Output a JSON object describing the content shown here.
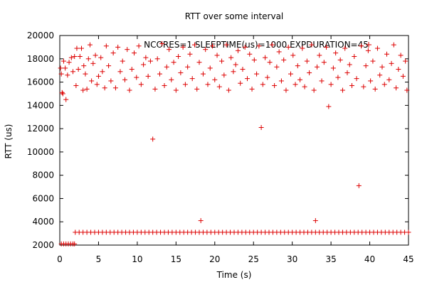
{
  "chart_data": {
    "type": "scatter",
    "title": "RTT over some interval",
    "xlabel": "Time (s)",
    "ylabel": "RTT (us)",
    "xlim": [
      0,
      45
    ],
    "ylim": [
      2000,
      20000
    ],
    "grid": false,
    "legend_placement": "top-right",
    "marker": "+",
    "color": "#dd0000",
    "xticks": [
      0,
      5,
      10,
      15,
      20,
      25,
      30,
      35,
      40,
      45
    ],
    "yticks": [
      2000,
      4000,
      6000,
      8000,
      10000,
      12000,
      14000,
      16000,
      18000,
      20000
    ],
    "series": [
      {
        "name": "NCORES=1 SLEEPTIME(us)=1000 EXPDURATION=45",
        "points": [
          [
            0.1,
            17200
          ],
          [
            0.2,
            16700
          ],
          [
            0.3,
            15100
          ],
          [
            0.4,
            15000
          ],
          [
            0.5,
            17800
          ],
          [
            0.7,
            17200
          ],
          [
            0.8,
            14500
          ],
          [
            1.0,
            16600
          ],
          [
            1.2,
            17700
          ],
          [
            1.5,
            18100
          ],
          [
            1.7,
            16900
          ],
          [
            1.9,
            18200
          ],
          [
            2.1,
            15700
          ],
          [
            2.2,
            18900
          ],
          [
            2.4,
            17100
          ],
          [
            2.6,
            18200
          ],
          [
            2.8,
            18900
          ],
          [
            3.0,
            15300
          ],
          [
            3.1,
            17400
          ],
          [
            3.3,
            16700
          ],
          [
            3.5,
            15400
          ],
          [
            3.7,
            18000
          ],
          [
            3.9,
            19200
          ],
          [
            4.1,
            16100
          ],
          [
            4.3,
            17600
          ],
          [
            4.6,
            18300
          ],
          [
            4.8,
            15800
          ],
          [
            5.0,
            16500
          ],
          [
            5.3,
            18100
          ],
          [
            5.5,
            16900
          ],
          [
            5.8,
            15500
          ],
          [
            6.0,
            19100
          ],
          [
            6.3,
            17400
          ],
          [
            6.6,
            16100
          ],
          [
            6.9,
            18500
          ],
          [
            7.2,
            15500
          ],
          [
            7.5,
            19000
          ],
          [
            7.8,
            16900
          ],
          [
            8.1,
            17800
          ],
          [
            8.4,
            16200
          ],
          [
            8.7,
            18800
          ],
          [
            9.0,
            15300
          ],
          [
            9.3,
            17100
          ],
          [
            9.6,
            18500
          ],
          [
            9.9,
            16400
          ],
          [
            10.2,
            19100
          ],
          [
            10.5,
            15800
          ],
          [
            10.8,
            17500
          ],
          [
            11.1,
            18100
          ],
          [
            11.4,
            16500
          ],
          [
            11.7,
            17800
          ],
          [
            12.0,
            11100
          ],
          [
            12.3,
            15400
          ],
          [
            12.6,
            18000
          ],
          [
            12.9,
            16700
          ],
          [
            13.2,
            19300
          ],
          [
            13.5,
            15700
          ],
          [
            13.8,
            17300
          ],
          [
            14.1,
            18800
          ],
          [
            14.4,
            16200
          ],
          [
            14.7,
            17700
          ],
          [
            15.0,
            15300
          ],
          [
            15.3,
            18200
          ],
          [
            15.6,
            16800
          ],
          [
            15.9,
            19000
          ],
          [
            16.2,
            15800
          ],
          [
            16.5,
            17300
          ],
          [
            16.8,
            18400
          ],
          [
            17.1,
            16300
          ],
          [
            17.4,
            19200
          ],
          [
            17.7,
            15400
          ],
          [
            18.0,
            17700
          ],
          [
            18.2,
            4100
          ],
          [
            18.5,
            16700
          ],
          [
            18.8,
            18800
          ],
          [
            19.1,
            15800
          ],
          [
            19.4,
            17200
          ],
          [
            19.7,
            19100
          ],
          [
            20.0,
            16200
          ],
          [
            20.3,
            18300
          ],
          [
            20.6,
            15600
          ],
          [
            20.9,
            17800
          ],
          [
            21.2,
            16600
          ],
          [
            21.5,
            19200
          ],
          [
            21.8,
            15300
          ],
          [
            22.1,
            18100
          ],
          [
            22.4,
            16900
          ],
          [
            22.7,
            17500
          ],
          [
            23.0,
            18700
          ],
          [
            23.3,
            15900
          ],
          [
            23.6,
            17100
          ],
          [
            23.9,
            19000
          ],
          [
            24.2,
            16300
          ],
          [
            24.5,
            18400
          ],
          [
            24.8,
            15400
          ],
          [
            25.1,
            17900
          ],
          [
            25.4,
            16700
          ],
          [
            25.7,
            19100
          ],
          [
            26.0,
            12100
          ],
          [
            26.2,
            15800
          ],
          [
            26.5,
            18100
          ],
          [
            26.8,
            16400
          ],
          [
            27.1,
            17700
          ],
          [
            27.4,
            19200
          ],
          [
            27.7,
            15700
          ],
          [
            28.0,
            17300
          ],
          [
            28.3,
            18600
          ],
          [
            28.6,
            16100
          ],
          [
            28.9,
            17900
          ],
          [
            29.2,
            15300
          ],
          [
            29.5,
            19000
          ],
          [
            29.8,
            16700
          ],
          [
            30.1,
            18300
          ],
          [
            30.4,
            15800
          ],
          [
            30.7,
            17400
          ],
          [
            31.0,
            16200
          ],
          [
            31.3,
            18900
          ],
          [
            31.6,
            15600
          ],
          [
            31.9,
            17800
          ],
          [
            32.2,
            16800
          ],
          [
            32.5,
            19200
          ],
          [
            32.8,
            15300
          ],
          [
            33.0,
            4100
          ],
          [
            33.2,
            17300
          ],
          [
            33.5,
            18300
          ],
          [
            33.8,
            16100
          ],
          [
            34.1,
            17700
          ],
          [
            34.4,
            19000
          ],
          [
            34.7,
            13900
          ],
          [
            35.0,
            15800
          ],
          [
            35.3,
            17200
          ],
          [
            35.6,
            18500
          ],
          [
            35.9,
            16400
          ],
          [
            36.2,
            17900
          ],
          [
            36.5,
            15300
          ],
          [
            36.8,
            18900
          ],
          [
            37.1,
            16800
          ],
          [
            37.4,
            17500
          ],
          [
            37.7,
            15700
          ],
          [
            38.0,
            18200
          ],
          [
            38.3,
            16300
          ],
          [
            38.6,
            7100
          ],
          [
            38.9,
            19100
          ],
          [
            39.2,
            15600
          ],
          [
            39.5,
            17400
          ],
          [
            39.8,
            18700
          ],
          [
            40.1,
            16100
          ],
          [
            40.4,
            17800
          ],
          [
            40.7,
            15400
          ],
          [
            41.0,
            18900
          ],
          [
            41.3,
            16600
          ],
          [
            41.6,
            17300
          ],
          [
            41.9,
            15800
          ],
          [
            42.2,
            18400
          ],
          [
            42.5,
            16200
          ],
          [
            42.8,
            17600
          ],
          [
            43.1,
            19200
          ],
          [
            43.4,
            15500
          ],
          [
            43.7,
            17100
          ],
          [
            44.0,
            18300
          ],
          [
            44.3,
            16500
          ],
          [
            44.6,
            17800
          ],
          [
            44.8,
            15300
          ],
          [
            0.2,
            2100
          ],
          [
            0.5,
            2100
          ],
          [
            0.8,
            2100
          ],
          [
            1.1,
            2100
          ],
          [
            1.4,
            2100
          ],
          [
            1.7,
            2100
          ],
          [
            1.9,
            2100
          ],
          [
            2.0,
            3100
          ],
          [
            2.5,
            3100
          ],
          [
            3.0,
            3100
          ],
          [
            3.5,
            3100
          ],
          [
            4.0,
            3100
          ],
          [
            4.5,
            3100
          ],
          [
            5.0,
            3100
          ],
          [
            5.5,
            3100
          ],
          [
            6.0,
            3100
          ],
          [
            6.5,
            3100
          ],
          [
            7.0,
            3100
          ],
          [
            7.5,
            3100
          ],
          [
            8.0,
            3100
          ],
          [
            8.5,
            3100
          ],
          [
            9.0,
            3100
          ],
          [
            9.5,
            3100
          ],
          [
            10.0,
            3100
          ],
          [
            10.5,
            3100
          ],
          [
            11.0,
            3100
          ],
          [
            11.5,
            3100
          ],
          [
            12.0,
            3100
          ],
          [
            12.5,
            3100
          ],
          [
            13.0,
            3100
          ],
          [
            13.5,
            3100
          ],
          [
            14.0,
            3100
          ],
          [
            14.5,
            3100
          ],
          [
            15.0,
            3100
          ],
          [
            15.5,
            3100
          ],
          [
            16.0,
            3100
          ],
          [
            16.5,
            3100
          ],
          [
            17.0,
            3100
          ],
          [
            17.5,
            3100
          ],
          [
            18.0,
            3100
          ],
          [
            18.5,
            3100
          ],
          [
            19.0,
            3100
          ],
          [
            19.5,
            3100
          ],
          [
            20.0,
            3100
          ],
          [
            20.5,
            3100
          ],
          [
            21.0,
            3100
          ],
          [
            21.5,
            3100
          ],
          [
            22.0,
            3100
          ],
          [
            22.5,
            3100
          ],
          [
            23.0,
            3100
          ],
          [
            23.5,
            3100
          ],
          [
            24.0,
            3100
          ],
          [
            24.5,
            3100
          ],
          [
            25.0,
            3100
          ],
          [
            25.5,
            3100
          ],
          [
            26.0,
            3100
          ],
          [
            26.5,
            3100
          ],
          [
            27.0,
            3100
          ],
          [
            27.5,
            3100
          ],
          [
            28.0,
            3100
          ],
          [
            28.5,
            3100
          ],
          [
            29.0,
            3100
          ],
          [
            29.5,
            3100
          ],
          [
            30.0,
            3100
          ],
          [
            30.5,
            3100
          ],
          [
            31.0,
            3100
          ],
          [
            31.5,
            3100
          ],
          [
            32.0,
            3100
          ],
          [
            32.5,
            3100
          ],
          [
            33.0,
            3100
          ],
          [
            33.5,
            3100
          ],
          [
            34.0,
            3100
          ],
          [
            34.5,
            3100
          ],
          [
            35.0,
            3100
          ],
          [
            35.5,
            3100
          ],
          [
            36.0,
            3100
          ],
          [
            36.5,
            3100
          ],
          [
            37.0,
            3100
          ],
          [
            37.5,
            3100
          ],
          [
            38.0,
            3100
          ],
          [
            38.5,
            3100
          ],
          [
            39.0,
            3100
          ],
          [
            39.5,
            3100
          ],
          [
            40.0,
            3100
          ],
          [
            40.5,
            3100
          ],
          [
            41.0,
            3100
          ],
          [
            41.5,
            3100
          ],
          [
            42.0,
            3100
          ],
          [
            42.5,
            3100
          ],
          [
            43.0,
            3100
          ],
          [
            43.5,
            3100
          ],
          [
            44.0,
            3100
          ],
          [
            44.5,
            3100
          ],
          [
            45.0,
            3100
          ]
        ]
      }
    ]
  }
}
